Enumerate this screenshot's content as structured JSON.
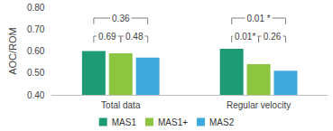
{
  "chart_data": {
    "type": "bar",
    "y_label": "AOC/ROM",
    "categories": [
      "Total data",
      "Regular velocity"
    ],
    "series": [
      {
        "name": "MAS1",
        "color": "#1e9a74",
        "values": [
          0.6,
          0.61
        ]
      },
      {
        "name": "MAS1+",
        "color": "#8cc540",
        "values": [
          0.59,
          0.54
        ]
      },
      {
        "name": "MAS2",
        "color": "#3eaadb",
        "values": [
          0.57,
          0.51
        ]
      }
    ],
    "ylim": [
      0.4,
      0.8
    ],
    "yticks": [
      {
        "value": 0.4,
        "label": "0.40"
      },
      {
        "value": 0.5,
        "label": "0.50"
      },
      {
        "value": 0.6,
        "label": "0.60"
      },
      {
        "value": 0.7,
        "label": "0.70"
      },
      {
        "value": 0.8,
        "label": "0.80"
      }
    ],
    "grid": false,
    "legend": "bottom",
    "annotations": [
      {
        "category": "Total data",
        "from": "MAS1",
        "to": "MAS1+",
        "text": "0.69"
      },
      {
        "category": "Total data",
        "from": "MAS1+",
        "to": "MAS2",
        "text": "0.48"
      },
      {
        "category": "Total data",
        "from": "MAS1",
        "to": "MAS2",
        "text": "0.36"
      },
      {
        "category": "Regular velocity",
        "from": "MAS1",
        "to": "MAS1+",
        "text": "0.01*"
      },
      {
        "category": "Regular velocity",
        "from": "MAS1+",
        "to": "MAS2",
        "text": "0.26"
      },
      {
        "category": "Regular velocity",
        "from": "MAS1",
        "to": "MAS2",
        "text": "0.01 *"
      }
    ]
  }
}
